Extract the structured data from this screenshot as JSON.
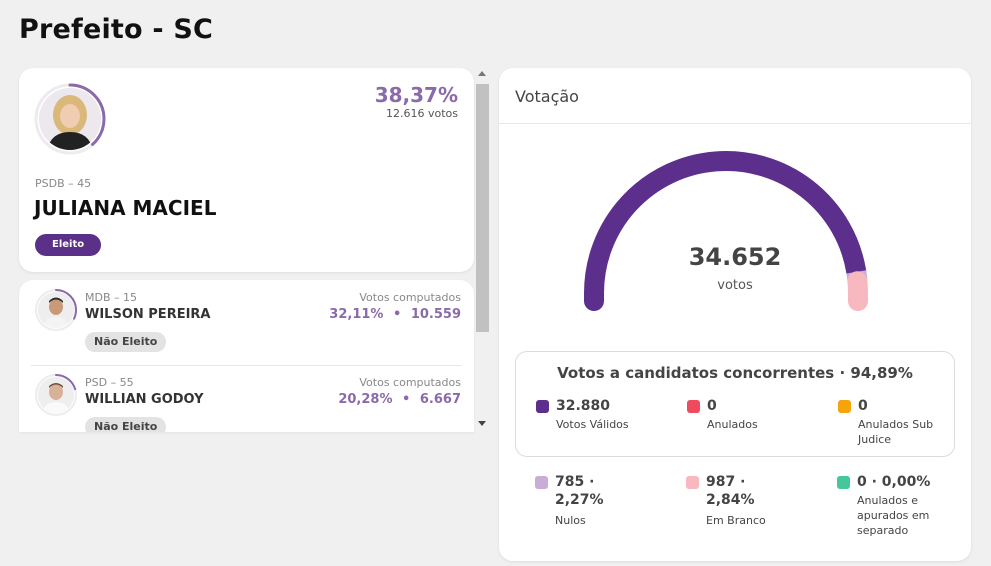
{
  "page": {
    "title": "Prefeito - SC"
  },
  "winner": {
    "percent": "38,37%",
    "votes": "12.616 votos",
    "party": "PSDB – 45",
    "name": "JULIANA MACIEL",
    "status": "Eleito",
    "progress": 0.3837
  },
  "candidates": [
    {
      "party": "MDB – 15",
      "name": "WILSON PEREIRA",
      "votes_label": "Votos computados",
      "percent": "32,11%",
      "separator": "•",
      "votes": "10.559",
      "status": "Não Eleito",
      "progress": 0.3211
    },
    {
      "party": "PSD – 55",
      "name": "WILLIAN GODOY",
      "votes_label": "Votos computados",
      "percent": "20,28%",
      "separator": "•",
      "votes": "6.667",
      "status": "Não Eleito",
      "progress": 0.2028
    }
  ],
  "votacao": {
    "title": "Votação",
    "total": "34.652",
    "total_label": "votos",
    "gauge_shares": {
      "validos": 0.9489,
      "nulos": 0.0227,
      "brancos": 0.0284
    },
    "box_title": "Votos a candidatos concorrentes · 94,89%",
    "stats": [
      {
        "value": "32.880",
        "label": "Votos Válidos",
        "color": "#5c2f8c"
      },
      {
        "value": "0",
        "label": "Anulados",
        "color": "#ef4a5d"
      },
      {
        "value": "0",
        "label": "Anulados Sub Judice",
        "color": "#f5a40c"
      },
      {
        "value": "785 · 2,27%",
        "label": "Nulos",
        "color": "#c8aed6"
      },
      {
        "value": "987 · 2,84%",
        "label": "Em Branco",
        "color": "#f8b8c0"
      },
      {
        "value": "0 · 0,00%",
        "label": "Anulados e apurados em separado",
        "color": "#43c79b"
      }
    ]
  },
  "colors": {
    "accent": "#8a6aa9",
    "brand": "#5c2f8c",
    "elected_badge": "#5b3088"
  }
}
